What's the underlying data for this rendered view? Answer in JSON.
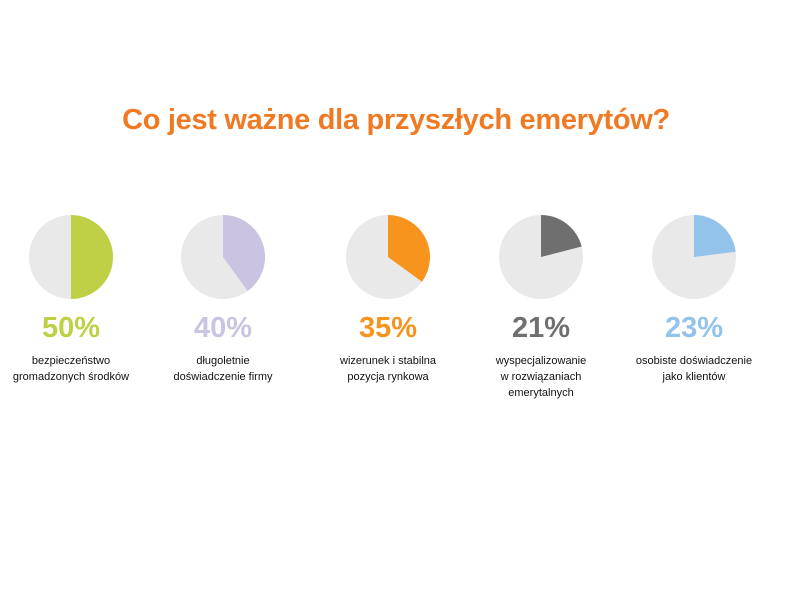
{
  "title": "Co jest ważne dla przyszłych emerytów?",
  "colors": {
    "title": "#ef7a23",
    "background_slice": "#e9e9e9"
  },
  "chart_data": {
    "type": "pie",
    "title": "Co jest ważne dla przyszłych emerytów?",
    "items": [
      {
        "value": 50,
        "label": "50%",
        "name": "bezpieczeństwo\ngromadzonych środków",
        "color": "#bfd046"
      },
      {
        "value": 40,
        "label": "40%",
        "name": "długoletnie\ndoświadczenie firmy",
        "color": "#cac3e2"
      },
      {
        "value": 35,
        "label": "35%",
        "name": "wizerunek i stabilna\npozycja rynkowa",
        "color": "#f7941d"
      },
      {
        "value": 21,
        "label": "21%",
        "name": "wyspecjalizowanie\nw rozwiązaniach\nemerytalnych",
        "color": "#6f6f6f"
      },
      {
        "value": 23,
        "label": "23%",
        "name": "osobiste doświadczenie\njako klientów",
        "color": "#93c3ea"
      }
    ]
  }
}
